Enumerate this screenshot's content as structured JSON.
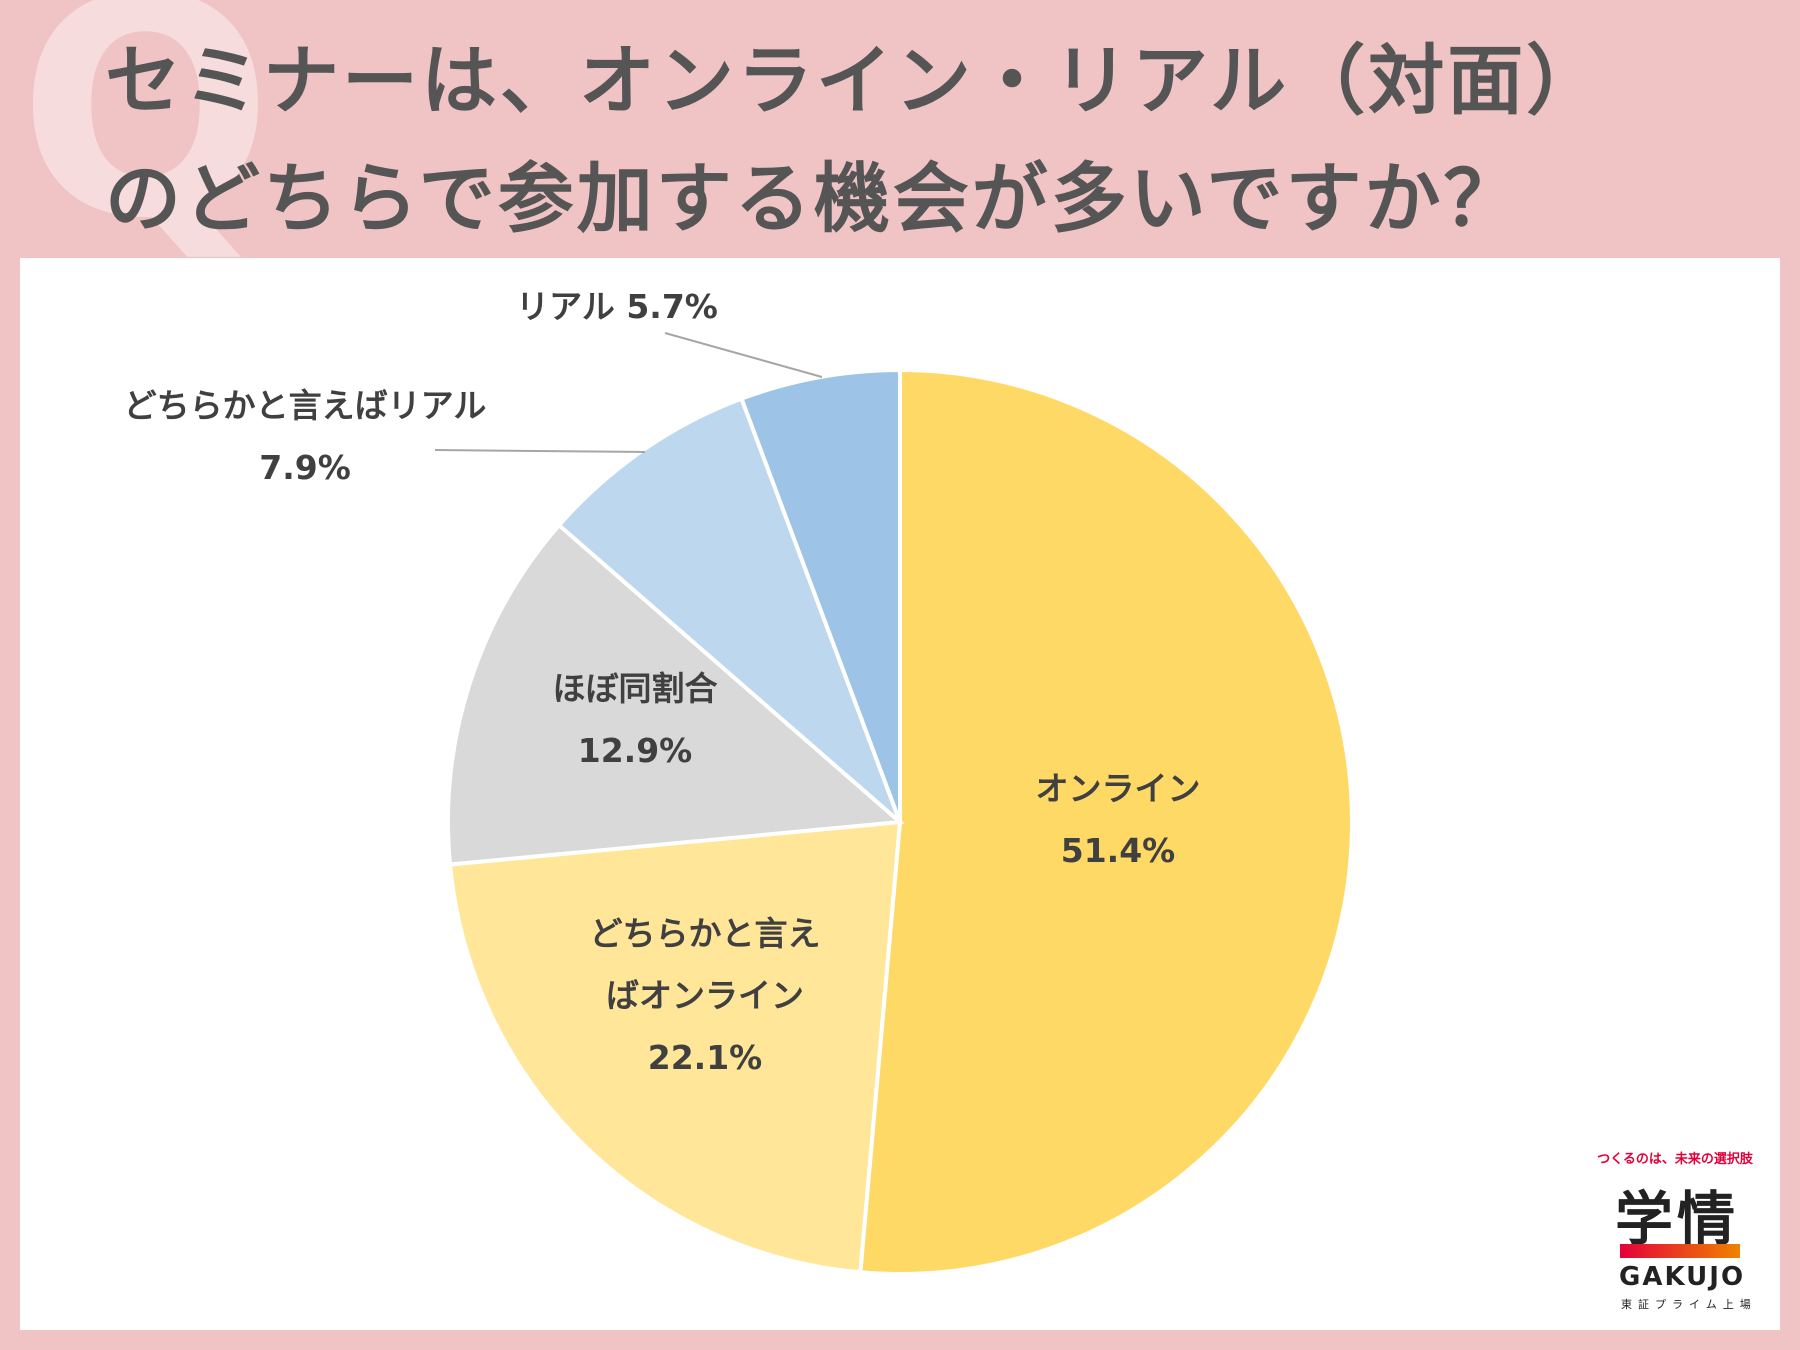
{
  "title_line1": "セミナーは、オンライン・リアル（対面）",
  "title_line2": "のどちらで参加する機会が多いですか？",
  "q_mark": "Q",
  "logo": {
    "tagline": "つくるのは、未来の選択肢",
    "main": "学情",
    "english": "GAKUJO",
    "sub": "東証プライム上場"
  },
  "chart_data": {
    "type": "pie",
    "start": "12 o'clock, clockwise",
    "slices": [
      {
        "name": "オンライン",
        "value": 51.4,
        "value_label": "51.4%",
        "color": "#ffd966",
        "label_lines": [
          "オンライン",
          "51.4%"
        ],
        "leader": false
      },
      {
        "name": "どちらかと言えばオンライン",
        "value": 22.1,
        "value_label": "22.1%",
        "color": "#ffe699",
        "label_lines": [
          "どちらかと言え",
          "ばオンライン",
          "22.1%"
        ],
        "leader": false
      },
      {
        "name": "ほぼ同割合",
        "value": 12.9,
        "value_label": "12.9%",
        "color": "#d9d9d9",
        "label_lines": [
          "ほぼ同割合",
          "12.9%"
        ],
        "leader": false
      },
      {
        "name": "どちらかと言えばリアル",
        "value": 7.9,
        "value_label": "7.9%",
        "color": "#bdd7ee",
        "label_lines": [
          "どちらかと言えばリアル",
          "7.9%"
        ],
        "leader": true
      },
      {
        "name": "リアル",
        "value": 5.7,
        "value_label": "5.7%",
        "color": "#9dc3e6",
        "label_lines": [
          "リアル 5.7%"
        ],
        "leader": true
      }
    ]
  }
}
